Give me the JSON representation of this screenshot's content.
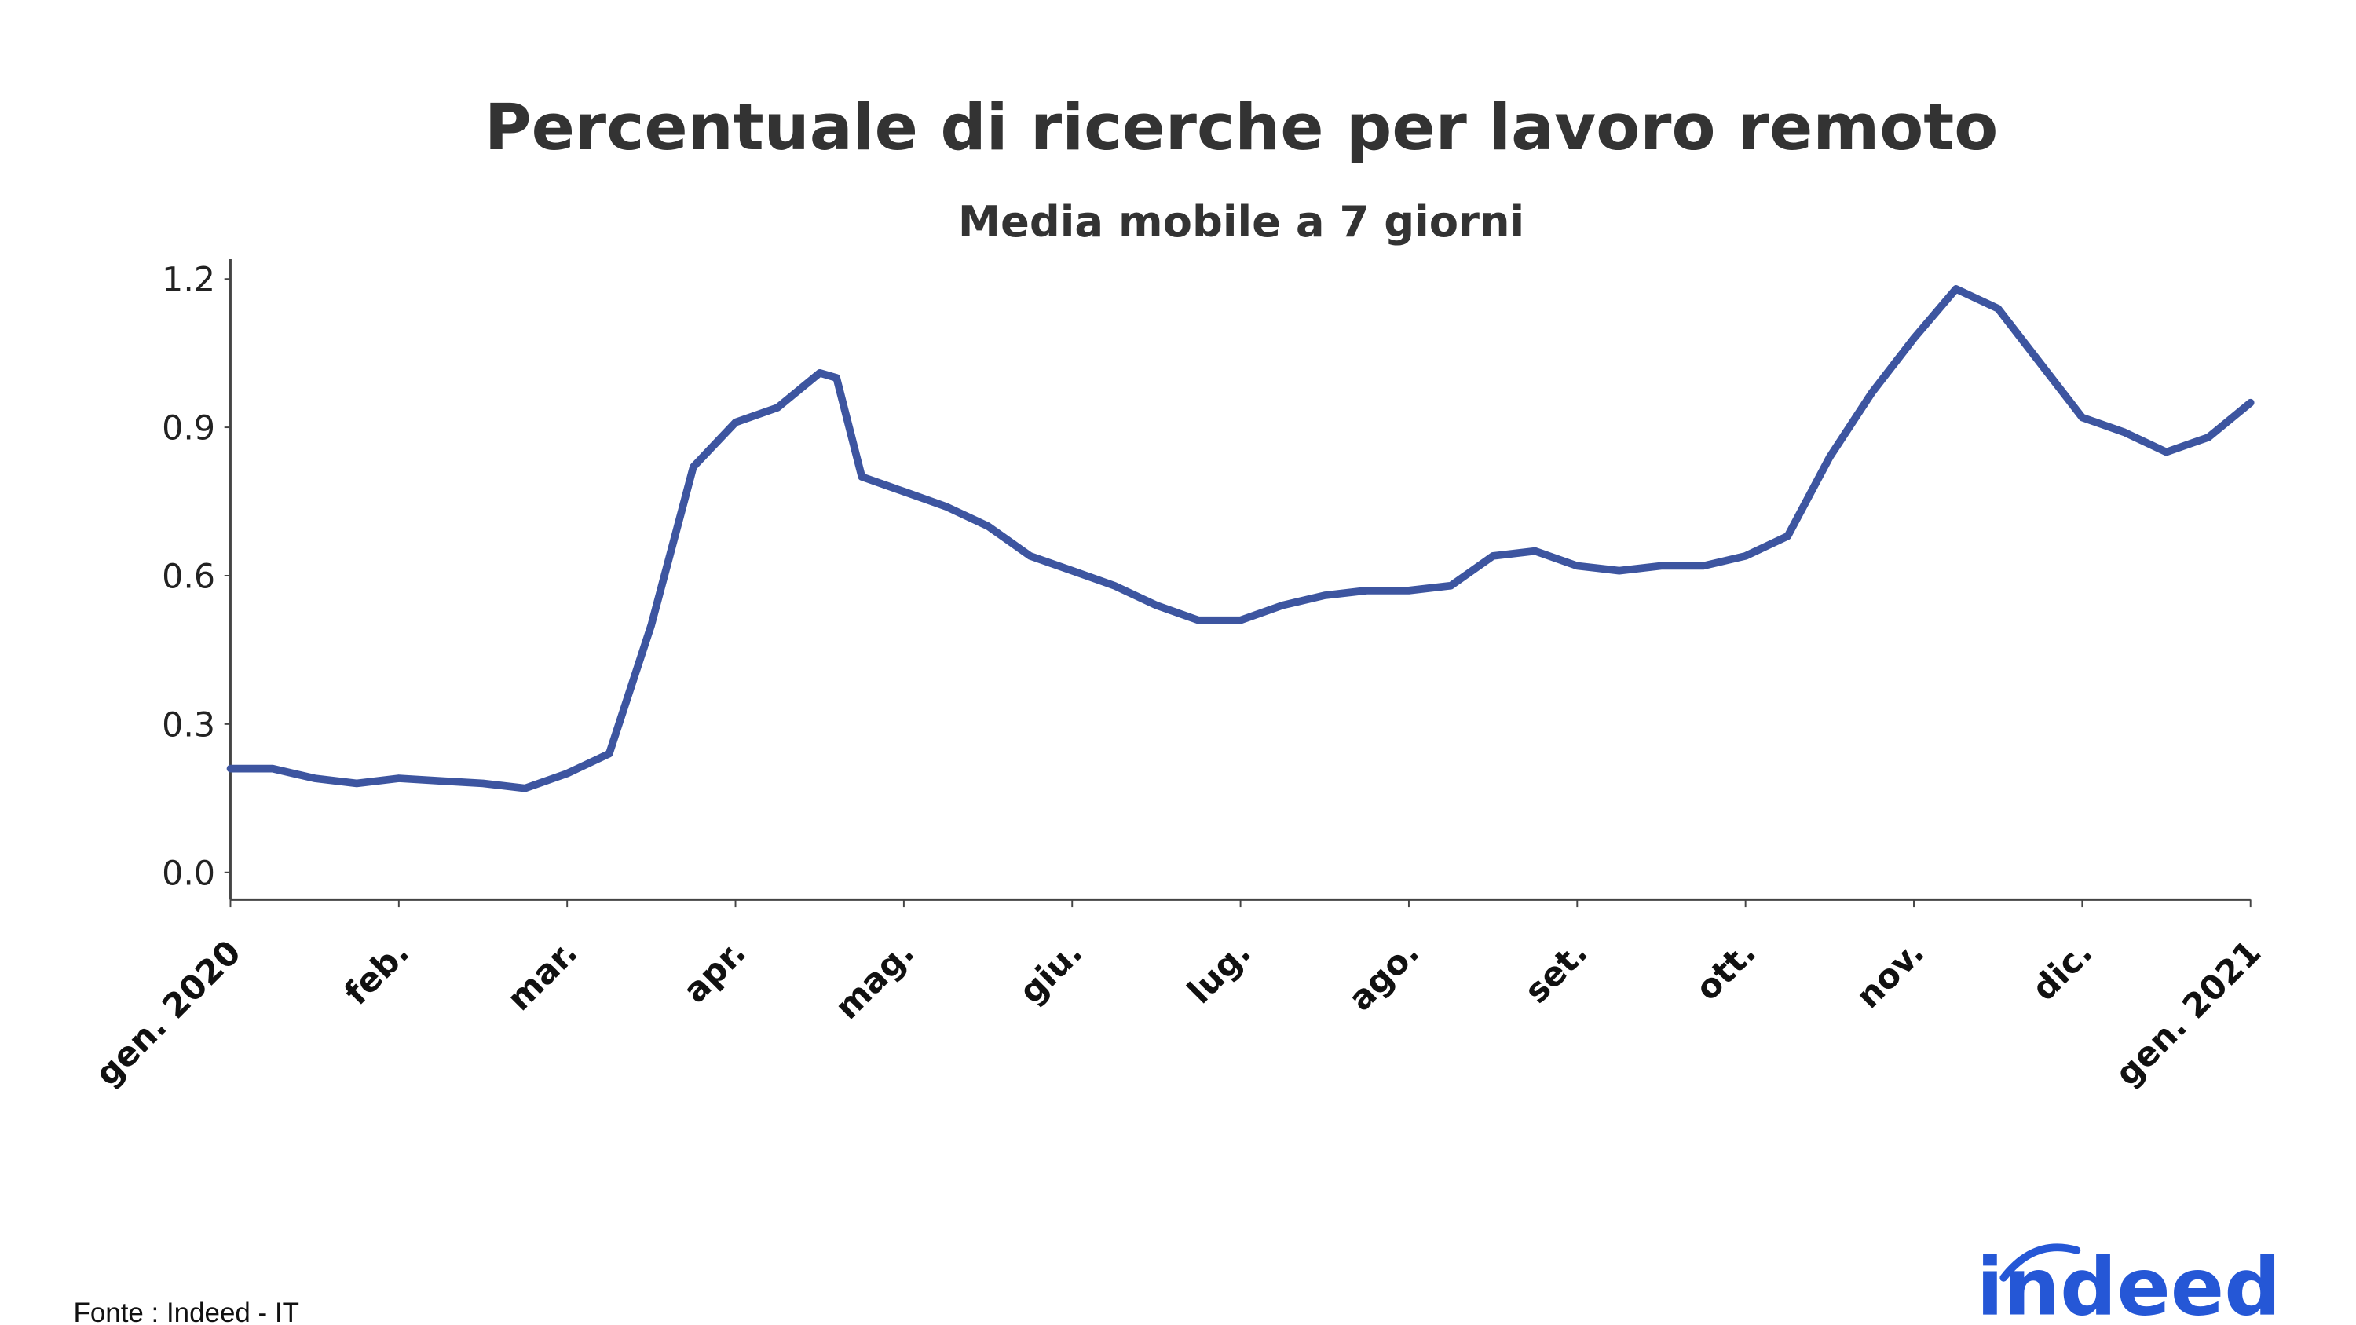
{
  "chart_data": {
    "type": "line",
    "title": "Percentuale di ricerche per lavoro remoto",
    "subtitle": "Media mobile a 7 giorni",
    "source": "Fonte : Indeed - IT",
    "logo": "indeed",
    "x": [
      0,
      0.25,
      0.5,
      0.75,
      1,
      1.25,
      1.5,
      1.75,
      2,
      2.25,
      2.5,
      2.75,
      3,
      3.25,
      3.5,
      3.6,
      3.75,
      4,
      4.25,
      4.5,
      4.75,
      5,
      5.25,
      5.5,
      5.75,
      6,
      6.25,
      6.5,
      6.75,
      7,
      7.25,
      7.5,
      7.75,
      8,
      8.25,
      8.5,
      8.75,
      9,
      9.25,
      9.5,
      9.75,
      10,
      10.25,
      10.5,
      10.75,
      11,
      11.25,
      11.5,
      11.75,
      12
    ],
    "series": [
      {
        "name": "Percentuale di ricerche per lavoro remoto",
        "color": "#3d55a0",
        "values": [
          0.21,
          0.21,
          0.19,
          0.18,
          0.19,
          0.185,
          0.18,
          0.17,
          0.2,
          0.24,
          0.5,
          0.82,
          0.91,
          0.94,
          1.01,
          1.0,
          0.8,
          0.77,
          0.74,
          0.7,
          0.64,
          0.61,
          0.58,
          0.54,
          0.51,
          0.51,
          0.54,
          0.56,
          0.57,
          0.57,
          0.58,
          0.64,
          0.65,
          0.62,
          0.61,
          0.62,
          0.62,
          0.64,
          0.68,
          0.84,
          0.97,
          1.08,
          1.18,
          1.14,
          1.03,
          0.92,
          0.89,
          0.85,
          0.88,
          0.95
        ]
      }
    ],
    "xlim": [
      0,
      12
    ],
    "xticks": [
      {
        "value": 0,
        "label": "gen. 2020"
      },
      {
        "value": 1,
        "label": "feb."
      },
      {
        "value": 2,
        "label": "mar."
      },
      {
        "value": 3,
        "label": "apr."
      },
      {
        "value": 4,
        "label": "mag."
      },
      {
        "value": 5,
        "label": "giu."
      },
      {
        "value": 6,
        "label": "lug."
      },
      {
        "value": 7,
        "label": "ago."
      },
      {
        "value": 8,
        "label": "set."
      },
      {
        "value": 9,
        "label": "ott."
      },
      {
        "value": 10,
        "label": "nov."
      },
      {
        "value": 11,
        "label": "dic."
      },
      {
        "value": 12,
        "label": "gen. 2021"
      }
    ],
    "ylim": [
      -0.055,
      1.24
    ],
    "yticks": [
      {
        "value": 0,
        "label": "0.0"
      },
      0.3,
      0.6,
      0.9,
      1.2
    ],
    "grid": false
  }
}
